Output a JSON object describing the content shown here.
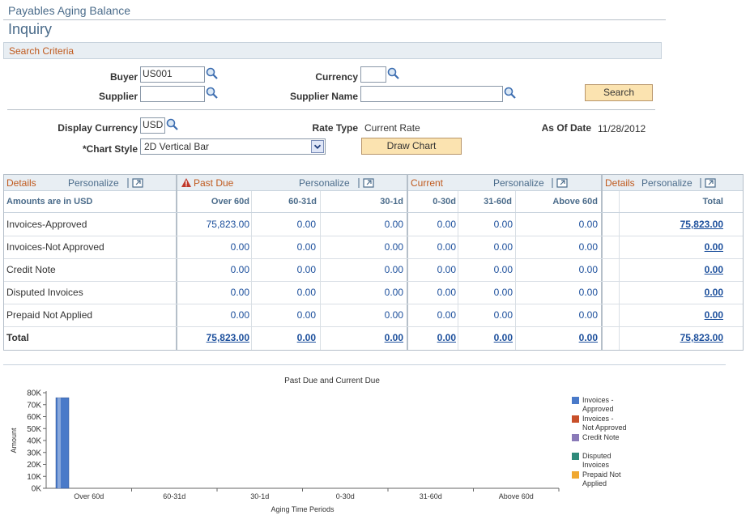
{
  "page": {
    "title": "Payables Aging Balance",
    "subtitle": "Inquiry",
    "criteria_header": "Search Criteria"
  },
  "criteria": {
    "buyer_label": "Buyer",
    "buyer_value": "US001",
    "supplier_label": "Supplier",
    "supplier_value": "",
    "currency_label": "Currency",
    "currency_value": "",
    "supplier_name_label": "Supplier Name",
    "supplier_name_value": "",
    "search_button": "Search"
  },
  "display": {
    "display_currency_label": "Display Currency",
    "display_currency_value": "USD",
    "rate_type_label": "Rate Type",
    "rate_type_value": "Current Rate",
    "as_of_label": "As Of Date",
    "as_of_value": "11/28/2012",
    "chart_style_label": "*Chart Style",
    "chart_style_value": "2D Vertical Bar",
    "draw_chart_button": "Draw Chart"
  },
  "grids": {
    "details": {
      "title": "Details",
      "personalize": "Personalize",
      "col_header": "Amounts are in USD"
    },
    "past_due": {
      "title": "Past Due",
      "personalize": "Personalize"
    },
    "current": {
      "title": "Current",
      "personalize": "Personalize"
    },
    "totals": {
      "title": "Details",
      "personalize": "Personalize",
      "col_header": "Total"
    }
  },
  "columns": [
    "Over 60d",
    "60-31d",
    "30-1d",
    "0-30d",
    "31-60d",
    "Above 60d"
  ],
  "rows": [
    {
      "label": "Invoices-Approved",
      "values": [
        "75,823.00",
        "0.00",
        "0.00",
        "0.00",
        "0.00",
        "0.00"
      ],
      "total": "75,823.00"
    },
    {
      "label": "Invoices-Not Approved",
      "values": [
        "0.00",
        "0.00",
        "0.00",
        "0.00",
        "0.00",
        "0.00"
      ],
      "total": "0.00"
    },
    {
      "label": "Credit Note",
      "values": [
        "0.00",
        "0.00",
        "0.00",
        "0.00",
        "0.00",
        "0.00"
      ],
      "total": "0.00"
    },
    {
      "label": "Disputed Invoices",
      "values": [
        "0.00",
        "0.00",
        "0.00",
        "0.00",
        "0.00",
        "0.00"
      ],
      "total": "0.00"
    },
    {
      "label": "Prepaid Not Applied",
      "values": [
        "0.00",
        "0.00",
        "0.00",
        "0.00",
        "0.00",
        "0.00"
      ],
      "total": "0.00"
    }
  ],
  "total_row": {
    "label": "Total",
    "values": [
      "75,823.00",
      "0.00",
      "0.00",
      "0.00",
      "0.00",
      "0.00"
    ],
    "total": "75,823.00"
  },
  "colors": {
    "accent": "#c05a1e",
    "link": "#1c4f9c",
    "header_bg": "#e8eef3",
    "button": "#fbe3b0"
  },
  "chart_data": {
    "type": "bar",
    "title": "Past Due and Current Due",
    "xlabel": "Aging Time Periods",
    "ylabel": "Amount",
    "ylim": [
      0,
      80000
    ],
    "yticks": [
      "0K",
      "10K",
      "20K",
      "30K",
      "40K",
      "50K",
      "60K",
      "70K",
      "80K"
    ],
    "categories": [
      "Over 60d",
      "60-31d",
      "30-1d",
      "0-30d",
      "31-60d",
      "Above 60d"
    ],
    "series": [
      {
        "name": "Invoices - Approved",
        "color": "#4a7ac9",
        "values": [
          75823,
          0,
          0,
          0,
          0,
          0
        ]
      },
      {
        "name": "Invoices - Not Approved",
        "color": "#c8502a",
        "values": [
          0,
          0,
          0,
          0,
          0,
          0
        ]
      },
      {
        "name": "Credit Note",
        "color": "#8a7ab8",
        "values": [
          0,
          0,
          0,
          0,
          0,
          0
        ]
      },
      {
        "name": "Disputed Invoices",
        "color": "#2e8a7a",
        "values": [
          0,
          0,
          0,
          0,
          0,
          0
        ]
      },
      {
        "name": "Prepaid Not Applied",
        "color": "#f0a830",
        "values": [
          0,
          0,
          0,
          0,
          0,
          0
        ]
      }
    ],
    "legend": "right"
  }
}
